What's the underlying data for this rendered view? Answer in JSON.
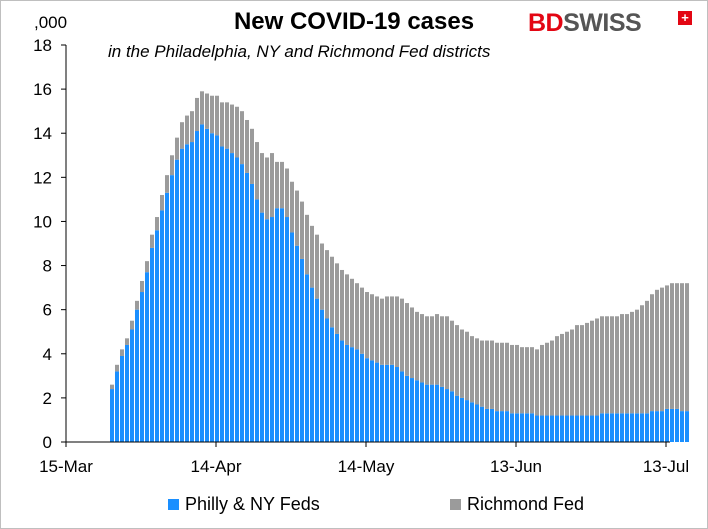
{
  "title": "New COVID-19 cases",
  "subtitle": "in the Philadelphia, NY and Richmond Fed districts",
  "unit_label": ",000",
  "logo": {
    "bd": "BD",
    "swiss": "SWISS",
    "mark": "+"
  },
  "colors": {
    "philly_ny": "#1a8fff",
    "richmond": "#9b9b9b",
    "axis": "#000000"
  },
  "chart_data": {
    "type": "bar",
    "stacked": true,
    "title": "New COVID-19 cases",
    "subtitle": "in the Philadelphia, NY and Richmond Fed districts",
    "ylabel": ",000",
    "ylim": [
      0,
      18
    ],
    "yticks": [
      0,
      2,
      4,
      6,
      8,
      10,
      12,
      14,
      16,
      18
    ],
    "x_start": "2020-03-15",
    "xticks": [
      {
        "label": "15-Mar",
        "date": "2020-03-15"
      },
      {
        "label": "14-Apr",
        "date": "2020-04-14"
      },
      {
        "label": "14-May",
        "date": "2020-05-14"
      },
      {
        "label": "13-Jun",
        "date": "2020-06-13"
      },
      {
        "label": "13-Jul",
        "date": "2020-07-13"
      }
    ],
    "x": [
      "2020-03-24",
      "2020-03-25",
      "2020-03-26",
      "2020-03-27",
      "2020-03-28",
      "2020-03-29",
      "2020-03-30",
      "2020-03-31",
      "2020-04-01",
      "2020-04-02",
      "2020-04-03",
      "2020-04-04",
      "2020-04-05",
      "2020-04-06",
      "2020-04-07",
      "2020-04-08",
      "2020-04-09",
      "2020-04-10",
      "2020-04-11",
      "2020-04-12",
      "2020-04-13",
      "2020-04-14",
      "2020-04-15",
      "2020-04-16",
      "2020-04-17",
      "2020-04-18",
      "2020-04-19",
      "2020-04-20",
      "2020-04-21",
      "2020-04-22",
      "2020-04-23",
      "2020-04-24",
      "2020-04-25",
      "2020-04-26",
      "2020-04-27",
      "2020-04-28",
      "2020-04-29",
      "2020-04-30",
      "2020-05-01",
      "2020-05-02",
      "2020-05-03",
      "2020-05-04",
      "2020-05-05",
      "2020-05-06",
      "2020-05-07",
      "2020-05-08",
      "2020-05-09",
      "2020-05-10",
      "2020-05-11",
      "2020-05-12",
      "2020-05-13",
      "2020-05-14",
      "2020-05-15",
      "2020-05-16",
      "2020-05-17",
      "2020-05-18",
      "2020-05-19",
      "2020-05-20",
      "2020-05-21",
      "2020-05-22",
      "2020-05-23",
      "2020-05-24",
      "2020-05-25",
      "2020-05-26",
      "2020-05-27",
      "2020-05-28",
      "2020-05-29",
      "2020-05-30",
      "2020-05-31",
      "2020-06-01",
      "2020-06-02",
      "2020-06-03",
      "2020-06-04",
      "2020-06-05",
      "2020-06-06",
      "2020-06-07",
      "2020-06-08",
      "2020-06-09",
      "2020-06-10",
      "2020-06-11",
      "2020-06-12",
      "2020-06-13",
      "2020-06-14",
      "2020-06-15",
      "2020-06-16",
      "2020-06-17",
      "2020-06-18",
      "2020-06-19",
      "2020-06-20",
      "2020-06-21",
      "2020-06-22",
      "2020-06-23",
      "2020-06-24",
      "2020-06-25",
      "2020-06-26",
      "2020-06-27",
      "2020-06-28",
      "2020-06-29",
      "2020-06-30",
      "2020-07-01",
      "2020-07-02",
      "2020-07-03",
      "2020-07-04",
      "2020-07-05",
      "2020-07-06",
      "2020-07-07",
      "2020-07-08",
      "2020-07-09",
      "2020-07-10",
      "2020-07-11",
      "2020-07-12",
      "2020-07-13",
      "2020-07-14",
      "2020-07-15",
      "2020-07-16",
      "2020-07-17"
    ],
    "series": [
      {
        "name": "Philly & NY Feds",
        "color": "#1a8fff",
        "values": [
          2.4,
          3.2,
          3.9,
          4.4,
          5.1,
          6.0,
          6.8,
          7.7,
          8.8,
          9.6,
          10.5,
          11.3,
          12.1,
          12.8,
          13.3,
          13.5,
          13.6,
          14.1,
          14.4,
          14.2,
          14.0,
          13.9,
          13.4,
          13.3,
          13.1,
          12.9,
          12.6,
          12.2,
          11.7,
          11.0,
          10.4,
          10.1,
          10.2,
          10.6,
          10.6,
          10.2,
          9.5,
          8.9,
          8.3,
          7.6,
          7.0,
          6.5,
          6.0,
          5.6,
          5.2,
          4.9,
          4.6,
          4.4,
          4.3,
          4.2,
          4.0,
          3.8,
          3.7,
          3.6,
          3.5,
          3.5,
          3.5,
          3.4,
          3.2,
          3.0,
          2.9,
          2.8,
          2.7,
          2.6,
          2.6,
          2.6,
          2.5,
          2.4,
          2.3,
          2.1,
          2.0,
          1.9,
          1.8,
          1.7,
          1.6,
          1.5,
          1.5,
          1.4,
          1.4,
          1.4,
          1.3,
          1.3,
          1.3,
          1.3,
          1.3,
          1.2,
          1.2,
          1.2,
          1.2,
          1.2,
          1.2,
          1.2,
          1.2,
          1.2,
          1.2,
          1.2,
          1.2,
          1.2,
          1.3,
          1.3,
          1.3,
          1.3,
          1.3,
          1.3,
          1.3,
          1.3,
          1.3,
          1.3,
          1.4,
          1.4,
          1.4,
          1.5,
          1.5,
          1.5,
          1.4,
          1.4
        ]
      },
      {
        "name": "Richmond Fed",
        "color": "#9b9b9b",
        "values": [
          0.2,
          0.3,
          0.3,
          0.3,
          0.4,
          0.4,
          0.5,
          0.5,
          0.6,
          0.6,
          0.7,
          0.8,
          0.9,
          1.0,
          1.2,
          1.3,
          1.4,
          1.5,
          1.5,
          1.6,
          1.7,
          1.8,
          2.0,
          2.1,
          2.2,
          2.3,
          2.4,
          2.4,
          2.5,
          2.6,
          2.7,
          2.8,
          2.9,
          2.1,
          2.1,
          2.2,
          2.3,
          2.5,
          2.6,
          2.7,
          2.8,
          2.9,
          3.0,
          3.1,
          3.2,
          3.2,
          3.2,
          3.2,
          3.1,
          3.0,
          3.0,
          3.0,
          3.0,
          3.0,
          3.0,
          3.1,
          3.1,
          3.2,
          3.3,
          3.3,
          3.2,
          3.1,
          3.1,
          3.1,
          3.1,
          3.2,
          3.2,
          3.3,
          3.2,
          3.2,
          3.1,
          3.1,
          3.0,
          3.0,
          3.0,
          3.1,
          3.1,
          3.1,
          3.1,
          3.1,
          3.1,
          3.1,
          3.0,
          3.0,
          3.0,
          3.0,
          3.2,
          3.3,
          3.4,
          3.6,
          3.7,
          3.8,
          3.9,
          4.1,
          4.1,
          4.2,
          4.3,
          4.4,
          4.4,
          4.4,
          4.4,
          4.4,
          4.5,
          4.5,
          4.6,
          4.7,
          4.9,
          5.1,
          5.3,
          5.5,
          5.6,
          5.6,
          5.7,
          5.7,
          5.8,
          5.8
        ]
      }
    ],
    "legend": "bottom"
  }
}
